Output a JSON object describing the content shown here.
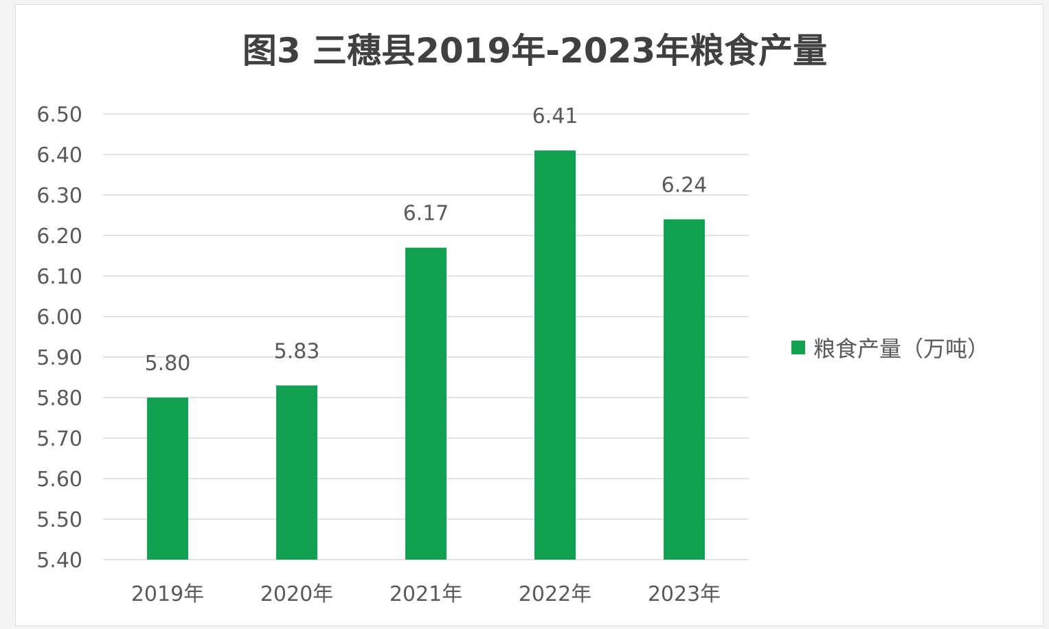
{
  "chart_data": {
    "type": "bar",
    "title": "图3 三穗县2019年-2023年粮食产量",
    "categories": [
      "2019年",
      "2020年",
      "2021年",
      "2022年",
      "2023年"
    ],
    "series": [
      {
        "name": "粮食产量（万吨）",
        "values": [
          5.8,
          5.83,
          6.17,
          6.41,
          6.24
        ],
        "labels": [
          "5.80",
          "5.83",
          "6.17",
          "6.41",
          "6.24"
        ],
        "color": "#12a150"
      }
    ],
    "y_ticks": [
      "5.40",
      "5.50",
      "5.60",
      "5.70",
      "5.80",
      "5.90",
      "6.00",
      "6.10",
      "6.20",
      "6.30",
      "6.40",
      "6.50"
    ],
    "ylim": [
      5.4,
      6.5
    ],
    "grid": true,
    "legend_position": "right",
    "gridline_color": "#d9d9d9",
    "text_color": "#595959"
  }
}
